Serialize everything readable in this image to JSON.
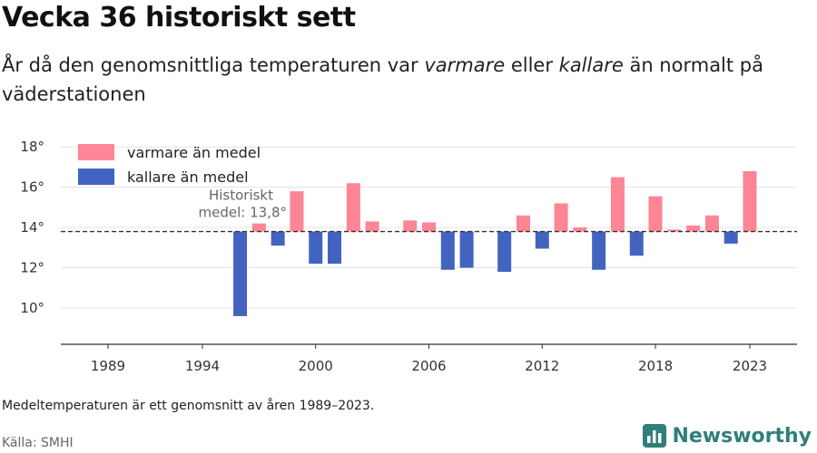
{
  "header": {
    "title": "Vecka 36 historiskt sett",
    "subtitle_parts": {
      "p1": "År då den genomsnittliga temperaturen var ",
      "p2": "varmare",
      "p3": " eller ",
      "p4": "kallare",
      "p5": " än normalt på väderstationen"
    }
  },
  "footer": {
    "note": "Medeltemperaturen är ett genomsnitt av åren 1989–2023.",
    "source": "Källa: SMHI",
    "brand": "Newsworthy"
  },
  "icons": {
    "brand_logo": "bar-chart-logo-icon"
  },
  "colors": {
    "warmer": "#fe8595",
    "colder": "#4363c0",
    "brand": "#2f7f7a"
  },
  "chart_data": {
    "type": "bar",
    "baseline": 13.8,
    "baseline_label": [
      "Historiskt",
      "medel: 13,8°"
    ],
    "ylim": [
      8.2,
      19
    ],
    "y_ticks": [
      10,
      12,
      14,
      16,
      18
    ],
    "y_tick_labels": [
      "10°",
      "12°",
      "14°",
      "16°",
      "18°"
    ],
    "xlim": [
      1986.5,
      2025.5
    ],
    "x_ticks": [
      1989,
      1994,
      2000,
      2006,
      2012,
      2018,
      2023
    ],
    "x_tick_labels": [
      "1989",
      "1994",
      "2000",
      "2006",
      "2012",
      "2018",
      "2023"
    ],
    "grid": true,
    "legend": {
      "placement": "top-left",
      "entries": [
        {
          "label": "varmare än medel",
          "color": "#fe8595"
        },
        {
          "label": "kallare än medel",
          "color": "#4363c0"
        }
      ]
    },
    "years": [
      1996,
      1997,
      1998,
      1999,
      2000,
      2001,
      2002,
      2003,
      2005,
      2006,
      2007,
      2008,
      2010,
      2011,
      2012,
      2013,
      2014,
      2015,
      2016,
      2017,
      2018,
      2019,
      2020,
      2021,
      2022,
      2023
    ],
    "values": [
      9.6,
      14.2,
      13.1,
      15.8,
      12.2,
      12.2,
      16.2,
      14.3,
      14.35,
      14.25,
      11.9,
      12.0,
      11.8,
      14.6,
      12.95,
      15.2,
      14.0,
      11.9,
      16.5,
      12.6,
      15.55,
      13.9,
      14.1,
      14.6,
      13.2,
      16.8
    ]
  }
}
